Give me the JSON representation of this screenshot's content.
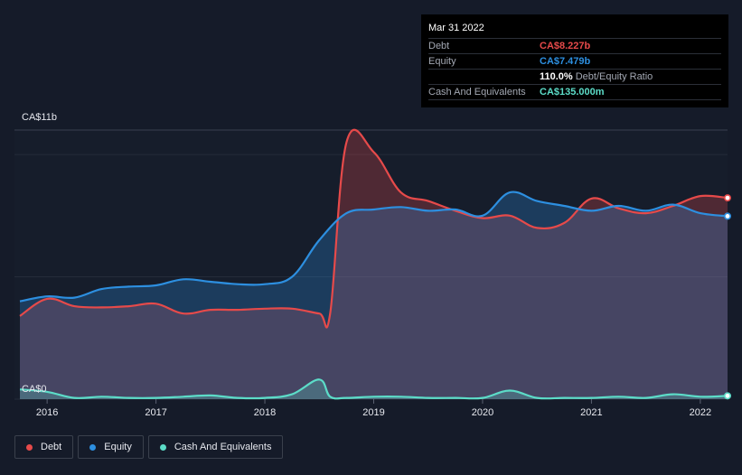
{
  "tooltip": {
    "date": "Mar 31 2022",
    "rows": [
      {
        "label": "Debt",
        "value": "CA$8.227b"
      },
      {
        "label": "Equity",
        "value": "CA$7.479b"
      },
      {
        "label": "",
        "value": "110.0%",
        "suffix": "Debt/Equity Ratio"
      },
      {
        "label": "Cash And Equivalents",
        "value": "CA$135.000m"
      }
    ]
  },
  "legend": [
    {
      "label": "Debt",
      "color": "#e64a4a"
    },
    {
      "label": "Equity",
      "color": "#2d8fe0"
    },
    {
      "label": "Cash And Equivalents",
      "color": "#5cdcc8"
    }
  ],
  "chart_data": {
    "type": "area",
    "ylim": [
      0,
      11
    ],
    "ytick_labels": [
      "CA$11b",
      "CA$0"
    ],
    "xtick_labels": [
      "2016",
      "2017",
      "2018",
      "2019",
      "2020",
      "2021",
      "2022"
    ],
    "xlim": [
      2015.7,
      2022.25
    ],
    "grid": true,
    "legend_position": "bottom-left",
    "series": [
      {
        "name": "Debt",
        "color": "#e64a4a",
        "x": [
          2015.75,
          2016.0,
          2016.25,
          2016.5,
          2016.75,
          2017.0,
          2017.25,
          2017.5,
          2017.75,
          2018.0,
          2018.25,
          2018.5,
          2018.6,
          2018.75,
          2019.0,
          2019.25,
          2019.5,
          2019.75,
          2020.0,
          2020.25,
          2020.5,
          2020.75,
          2021.0,
          2021.25,
          2021.5,
          2021.75,
          2022.0,
          2022.25
        ],
        "y": [
          3.4,
          4.1,
          3.8,
          3.75,
          3.8,
          3.9,
          3.5,
          3.65,
          3.65,
          3.7,
          3.7,
          3.5,
          3.5,
          10.5,
          10.1,
          8.45,
          8.1,
          7.7,
          7.4,
          7.5,
          7.0,
          7.2,
          8.2,
          7.8,
          7.6,
          7.9,
          8.3,
          8.227
        ]
      },
      {
        "name": "Equity",
        "color": "#2d8fe0",
        "x": [
          2015.75,
          2016.0,
          2016.25,
          2016.5,
          2016.75,
          2017.0,
          2017.25,
          2017.5,
          2017.75,
          2018.0,
          2018.25,
          2018.5,
          2018.75,
          2019.0,
          2019.25,
          2019.5,
          2019.75,
          2020.0,
          2020.25,
          2020.5,
          2020.75,
          2021.0,
          2021.25,
          2021.5,
          2021.75,
          2022.0,
          2022.25
        ],
        "y": [
          4.0,
          4.2,
          4.15,
          4.5,
          4.6,
          4.65,
          4.9,
          4.8,
          4.7,
          4.7,
          5.0,
          6.5,
          7.6,
          7.75,
          7.85,
          7.7,
          7.75,
          7.5,
          8.45,
          8.1,
          7.9,
          7.7,
          7.9,
          7.7,
          7.95,
          7.6,
          7.479
        ]
      },
      {
        "name": "Cash And Equivalents",
        "color": "#5cdcc8",
        "x": [
          2015.75,
          2016.0,
          2016.25,
          2016.5,
          2016.75,
          2017.0,
          2017.25,
          2017.5,
          2017.75,
          2018.0,
          2018.25,
          2018.5,
          2018.6,
          2018.75,
          2019.0,
          2019.25,
          2019.5,
          2019.75,
          2020.0,
          2020.25,
          2020.5,
          2020.75,
          2021.0,
          2021.25,
          2021.5,
          2021.75,
          2022.0,
          2022.25
        ],
        "y": [
          0.4,
          0.3,
          0.05,
          0.1,
          0.05,
          0.05,
          0.1,
          0.15,
          0.05,
          0.05,
          0.2,
          0.8,
          0.1,
          0.05,
          0.1,
          0.1,
          0.05,
          0.05,
          0.05,
          0.35,
          0.05,
          0.05,
          0.05,
          0.1,
          0.05,
          0.2,
          0.1,
          0.135
        ]
      }
    ]
  }
}
